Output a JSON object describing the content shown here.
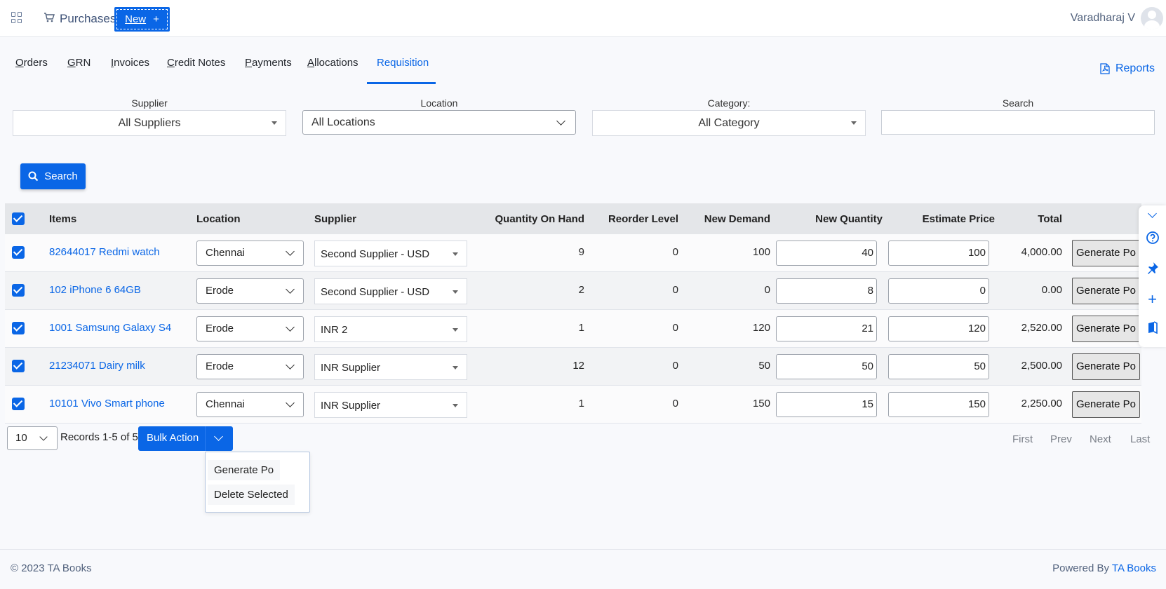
{
  "header": {
    "module_title": "Purchases",
    "new_label": "New",
    "new_plus": "+",
    "user_name": "Varadharaj V"
  },
  "tabs": [
    {
      "first": "O",
      "rest": "rders"
    },
    {
      "first": "G",
      "rest": "RN"
    },
    {
      "first": "I",
      "rest": "nvoices"
    },
    {
      "first": "C",
      "rest": "redit Notes"
    },
    {
      "first": "P",
      "rest": "ayments"
    },
    {
      "first": "A",
      "rest": "llocations"
    },
    {
      "first": "",
      "rest": "Requisition"
    }
  ],
  "reports_label": "Reports",
  "filters": {
    "supplier_label": "Supplier",
    "supplier_value": "All Suppliers",
    "location_label": "Location",
    "location_value": "All Locations",
    "category_label": "Category:",
    "category_value": "All Category",
    "search_label": "Search",
    "search_value": ""
  },
  "search_button": "Search",
  "table": {
    "headers": {
      "items": "Items",
      "location": "Location",
      "supplier": "Supplier",
      "qty_on_hand": "Quantity On Hand",
      "reorder_level": "Reorder Level",
      "new_demand": "New Demand",
      "new_quantity": "New Quantity",
      "estimate_price": "Estimate Price",
      "total": "Total"
    },
    "rows": [
      {
        "item": "82644017 Redmi watch",
        "location": "Chennai",
        "supplier": "Second Supplier - USD",
        "qty_on_hand": "9",
        "reorder_level": "0",
        "new_demand": "100",
        "new_quantity": "40",
        "estimate_price": "100",
        "total": "4,000.00",
        "action": "Generate Po"
      },
      {
        "item": "102 iPhone 6 64GB",
        "location": "Erode",
        "supplier": "Second Supplier - USD",
        "qty_on_hand": "2",
        "reorder_level": "0",
        "new_demand": "0",
        "new_quantity": "8",
        "estimate_price": "0",
        "total": "0.00",
        "action": "Generate Po"
      },
      {
        "item": "1001 Samsung Galaxy S4",
        "location": "Erode",
        "supplier": "INR 2",
        "qty_on_hand": "1",
        "reorder_level": "0",
        "new_demand": "120",
        "new_quantity": "21",
        "estimate_price": "120",
        "total": "2,520.00",
        "action": "Generate Po"
      },
      {
        "item": "21234071 Dairy milk",
        "location": "Erode",
        "supplier": "INR Supplier",
        "qty_on_hand": "12",
        "reorder_level": "0",
        "new_demand": "50",
        "new_quantity": "50",
        "estimate_price": "50",
        "total": "2,500.00",
        "action": "Generate Po"
      },
      {
        "item": "10101 Vivo Smart phone",
        "location": "Chennai",
        "supplier": "INR Supplier",
        "qty_on_hand": "1",
        "reorder_level": "0",
        "new_demand": "150",
        "new_quantity": "15",
        "estimate_price": "150",
        "total": "2,250.00",
        "action": "Generate Po"
      }
    ]
  },
  "pagination": {
    "page_size": "10",
    "records_text": "Records 1-5 of 5",
    "first": "First",
    "prev": "Prev",
    "next": "Next",
    "last": "Last"
  },
  "bulk_action": {
    "label": "Bulk Action",
    "menu": [
      "Generate Po",
      "Delete Selected"
    ]
  },
  "footer": {
    "copyright": "© 2023 TA Books",
    "powered_by": "Powered By ",
    "powered_link": "TA Books"
  },
  "colors": {
    "accent": "#0a66e6",
    "header_row": "#e4e6e9"
  }
}
